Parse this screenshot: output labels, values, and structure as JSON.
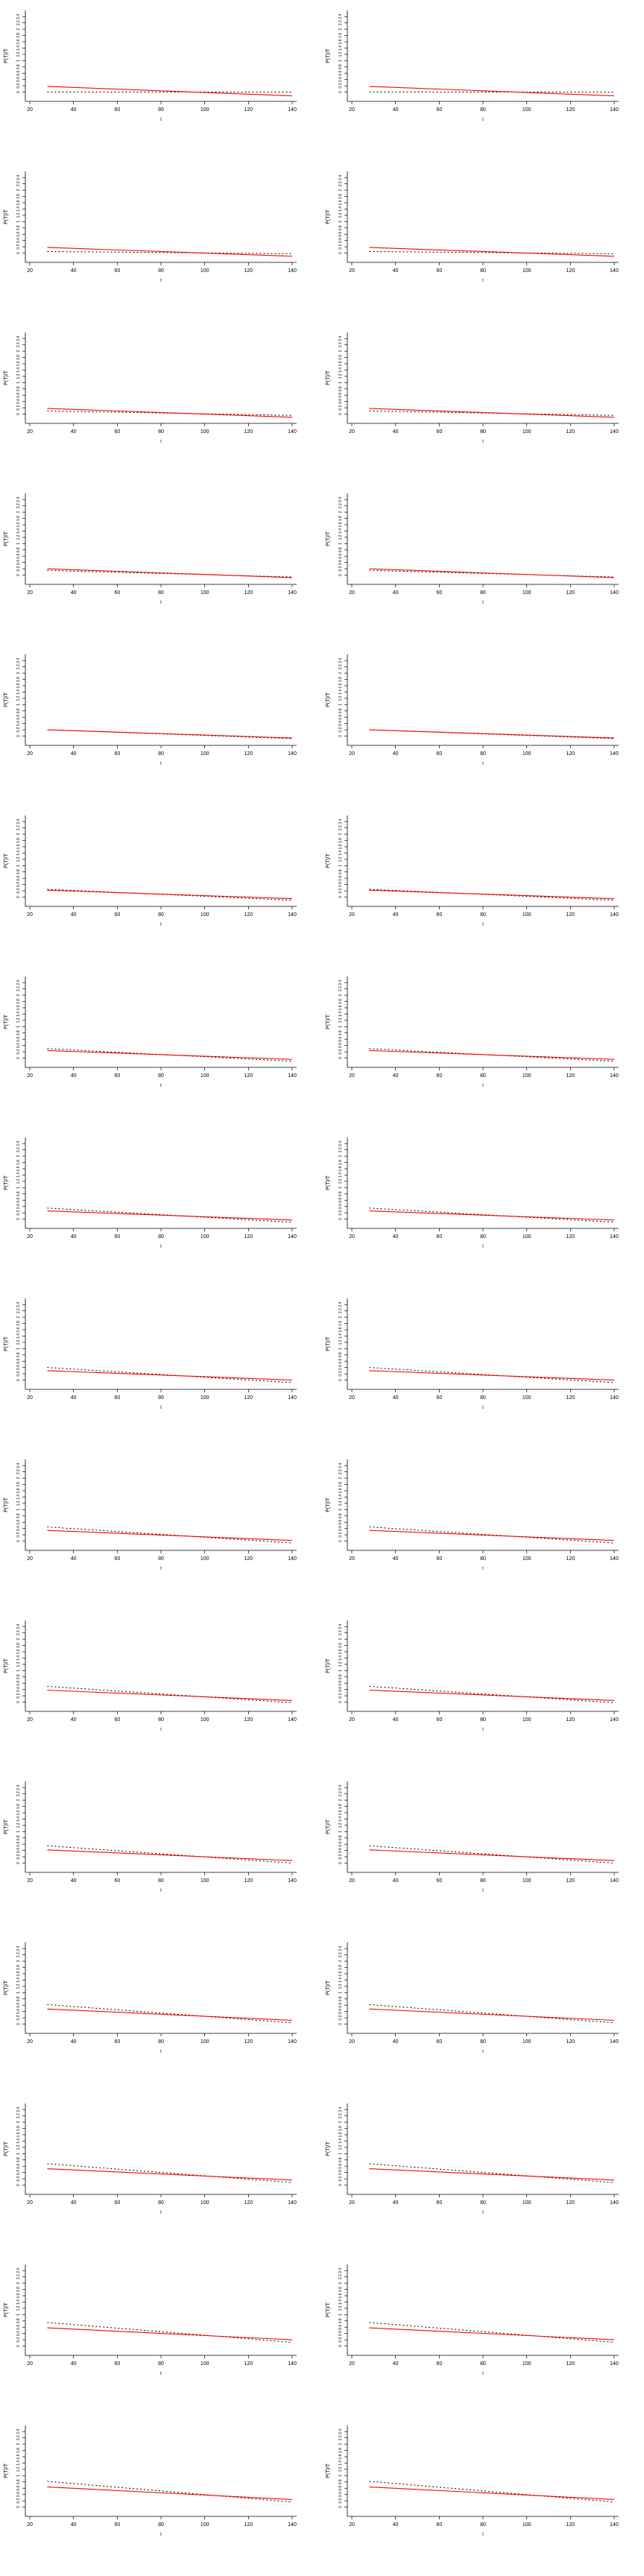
{
  "colors": {
    "model": "#ff0000",
    "reference": "#000000",
    "axis": "#000000"
  },
  "layout": {
    "rows": 16,
    "cols": 2
  },
  "chart_data": {
    "type": "line",
    "panel_count": 32,
    "xlabel": "t",
    "ylabel": "P(T)/T",
    "xlim": [
      20,
      140
    ],
    "ylim": [
      -0.2,
      2.5
    ],
    "xticks": [
      "20",
      "40",
      "60",
      "80",
      "100",
      "120",
      "140"
    ],
    "yticks": [
      "0",
      "0.2",
      "0.4",
      "0.6",
      "0.8",
      "1",
      "1.2",
      "1.4",
      "1.6",
      "1.8",
      "2",
      "2.2",
      "2.4"
    ],
    "x_start": 28,
    "x_end": 140,
    "series": [
      {
        "line": "solid",
        "color": "red"
      },
      {
        "line": "dotted",
        "color": "black"
      }
    ],
    "panels": [
      {
        "model": [
          0.18,
          -0.12
        ],
        "reference": [
          0.0,
          0.0
        ]
      },
      {
        "model": [
          0.18,
          -0.12
        ],
        "reference": [
          0.0,
          0.0
        ]
      },
      {
        "model": [
          0.18,
          -0.1
        ],
        "reference": [
          0.05,
          -0.02
        ]
      },
      {
        "model": [
          0.18,
          -0.1
        ],
        "reference": [
          0.05,
          -0.02
        ]
      },
      {
        "model": [
          0.18,
          -0.1
        ],
        "reference": [
          0.1,
          -0.04
        ]
      },
      {
        "model": [
          0.18,
          -0.1
        ],
        "reference": [
          0.1,
          -0.04
        ]
      },
      {
        "model": [
          0.2,
          -0.08
        ],
        "reference": [
          0.15,
          -0.06
        ]
      },
      {
        "model": [
          0.2,
          -0.08
        ],
        "reference": [
          0.15,
          -0.06
        ]
      },
      {
        "model": [
          0.2,
          -0.06
        ],
        "reference": [
          0.2,
          -0.08
        ]
      },
      {
        "model": [
          0.2,
          -0.06
        ],
        "reference": [
          0.2,
          -0.08
        ]
      },
      {
        "model": [
          0.22,
          -0.05
        ],
        "reference": [
          0.25,
          -0.1
        ]
      },
      {
        "model": [
          0.22,
          -0.05
        ],
        "reference": [
          0.25,
          -0.1
        ]
      },
      {
        "model": [
          0.24,
          -0.04
        ],
        "reference": [
          0.3,
          -0.1
        ]
      },
      {
        "model": [
          0.24,
          -0.04
        ],
        "reference": [
          0.3,
          -0.1
        ]
      },
      {
        "model": [
          0.26,
          -0.03
        ],
        "reference": [
          0.35,
          -0.1
        ]
      },
      {
        "model": [
          0.26,
          -0.03
        ],
        "reference": [
          0.35,
          -0.1
        ]
      },
      {
        "model": [
          0.3,
          0.0
        ],
        "reference": [
          0.4,
          -0.08
        ]
      },
      {
        "model": [
          0.3,
          0.0
        ],
        "reference": [
          0.4,
          -0.08
        ]
      },
      {
        "model": [
          0.34,
          0.02
        ],
        "reference": [
          0.45,
          -0.06
        ]
      },
      {
        "model": [
          0.34,
          0.02
        ],
        "reference": [
          0.45,
          -0.06
        ]
      },
      {
        "model": [
          0.38,
          0.05
        ],
        "reference": [
          0.5,
          -0.02
        ]
      },
      {
        "model": [
          0.38,
          0.05
        ],
        "reference": [
          0.5,
          -0.02
        ]
      },
      {
        "model": [
          0.42,
          0.08
        ],
        "reference": [
          0.55,
          0.0
        ]
      },
      {
        "model": [
          0.42,
          0.08
        ],
        "reference": [
          0.55,
          0.0
        ]
      },
      {
        "model": [
          0.48,
          0.12
        ],
        "reference": [
          0.62,
          0.04
        ]
      },
      {
        "model": [
          0.48,
          0.12
        ],
        "reference": [
          0.62,
          0.04
        ]
      },
      {
        "model": [
          0.52,
          0.16
        ],
        "reference": [
          0.68,
          0.08
        ]
      },
      {
        "model": [
          0.52,
          0.16
        ],
        "reference": [
          0.68,
          0.08
        ]
      },
      {
        "model": [
          0.58,
          0.2
        ],
        "reference": [
          0.75,
          0.12
        ]
      },
      {
        "model": [
          0.58,
          0.2
        ],
        "reference": [
          0.75,
          0.12
        ]
      },
      {
        "model": [
          0.64,
          0.24
        ],
        "reference": [
          0.82,
          0.16
        ]
      },
      {
        "model": [
          0.64,
          0.24
        ],
        "reference": [
          0.82,
          0.16
        ]
      }
    ]
  }
}
